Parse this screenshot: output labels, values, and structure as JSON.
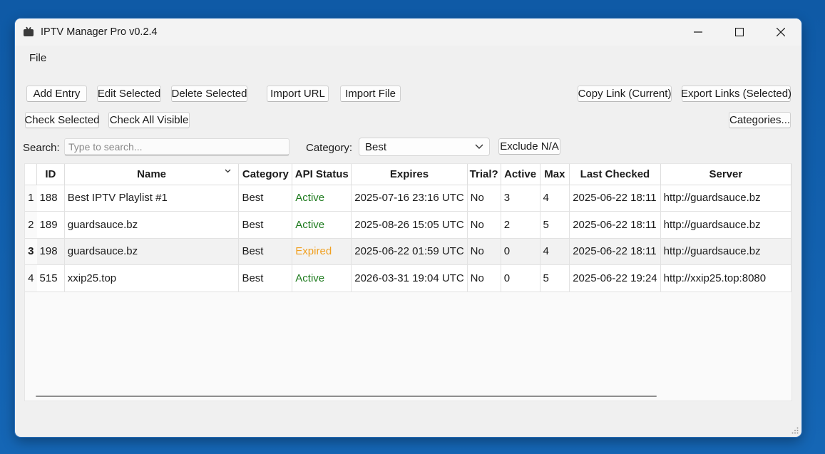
{
  "window": {
    "title": "IPTV Manager Pro v0.2.4"
  },
  "menu": {
    "file": "File"
  },
  "toolbar": {
    "add_entry": "Add Entry",
    "edit_selected": "Edit Selected",
    "delete_selected": "Delete Selected",
    "import_url": "Import URL",
    "import_file": "Import File",
    "copy_link": "Copy Link (Current)",
    "export_links": "Export Links (Selected)",
    "check_selected": "Check Selected",
    "check_all_visible": "Check All Visible",
    "categories": "Categories..."
  },
  "filters": {
    "search_label": "Search:",
    "search_placeholder": "Type to search...",
    "search_value": "",
    "category_label": "Category:",
    "category_value": "Best",
    "exclude_na": "Exclude N/A"
  },
  "table": {
    "columns": [
      "ID",
      "Name",
      "Category",
      "API Status",
      "Expires",
      "Trial?",
      "Active",
      "Max",
      "Last Checked",
      "Server"
    ],
    "sorted_column": "Name",
    "rows": [
      {
        "num": "1",
        "id": "188",
        "name": "Best IPTV Playlist #1",
        "category": "Best",
        "status": "Active",
        "expires": "2025-07-16 23:16 UTC",
        "trial": "No",
        "active": "3",
        "max": "4",
        "last_checked": "2025-06-22 18:11",
        "server": "http://guardsauce.bz"
      },
      {
        "num": "2",
        "id": "189",
        "name": "guardsauce.bz",
        "category": "Best",
        "status": "Active",
        "expires": "2025-08-26 15:05 UTC",
        "trial": "No",
        "active": "2",
        "max": "5",
        "last_checked": "2025-06-22 18:11",
        "server": "http://guardsauce.bz"
      },
      {
        "num": "3",
        "id": "198",
        "name": "guardsauce.bz",
        "category": "Best",
        "status": "Expired",
        "expires": "2025-06-22 01:59 UTC",
        "trial": "No",
        "active": "0",
        "max": "4",
        "last_checked": "2025-06-22 18:11",
        "server": "http://guardsauce.bz"
      },
      {
        "num": "4",
        "id": "515",
        "name": "xxip25.top",
        "category": "Best",
        "status": "Active",
        "expires": "2026-03-31 19:04 UTC",
        "trial": "No",
        "active": "0",
        "max": "5",
        "last_checked": "2025-06-22 19:24",
        "server": "http://xxip25.top:8080"
      }
    ]
  },
  "colors": {
    "status_active": "#1e7b1e",
    "status_expired": "#f0a020",
    "desktop": "#1566b5"
  }
}
